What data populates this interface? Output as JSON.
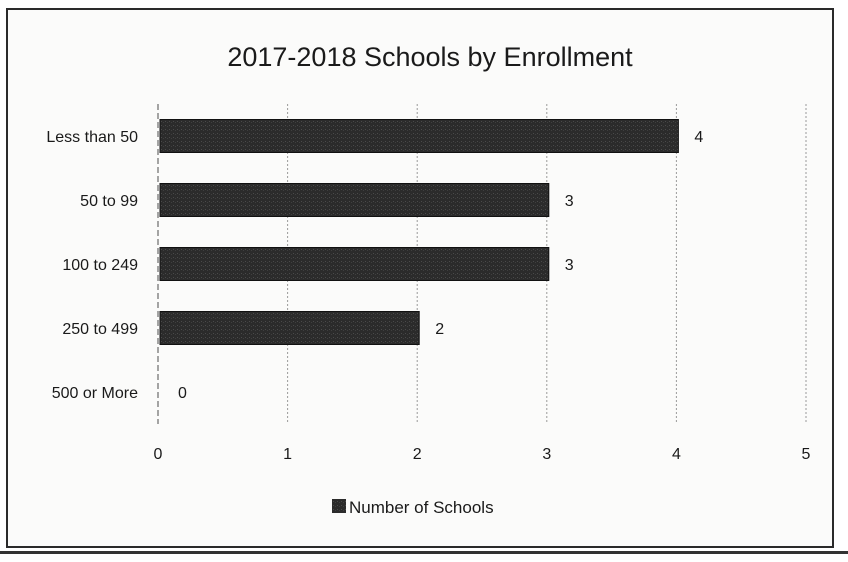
{
  "chart_data": {
    "type": "bar",
    "orientation": "horizontal",
    "title": "2017-2018 Schools by Enrollment",
    "categories": [
      "Less than 50",
      "50 to 99",
      "100 to 249",
      "250 to 499",
      "500 or More"
    ],
    "series": [
      {
        "name": "Number of Schools",
        "values": [
          4,
          3,
          3,
          2,
          0
        ],
        "data_labels": [
          "4",
          "3",
          "3",
          "2",
          "0"
        ]
      }
    ],
    "x_ticks": [
      "0",
      "1",
      "2",
      "3",
      "4",
      "5"
    ],
    "xlim": [
      0,
      5
    ],
    "grid": "vertical",
    "legend_position": "bottom",
    "colors": {
      "bar": "#262626",
      "grid": "#9a9a9a",
      "text": "#1a1a1a"
    }
  }
}
